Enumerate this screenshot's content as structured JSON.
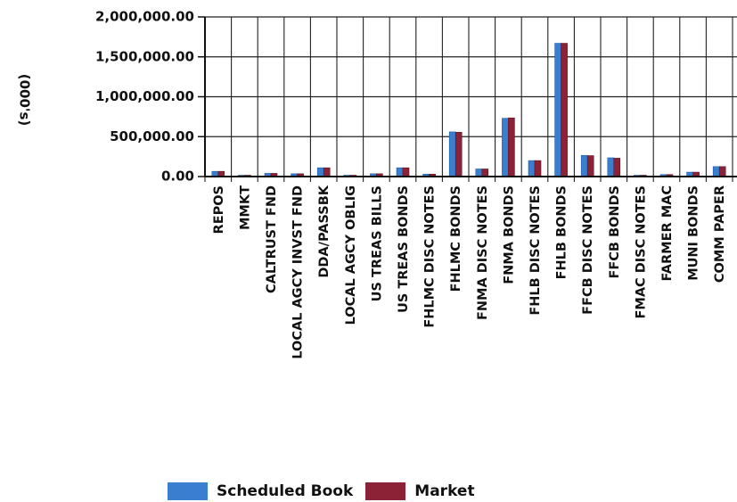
{
  "chart_data": {
    "type": "bar",
    "ylabel": "(000's)",
    "ylim": [
      0,
      2000000
    ],
    "yticks": [
      "2,000,000.00",
      "1,500,000.00",
      "1,000,000.00",
      "500,000.00",
      "0.00"
    ],
    "grid": true,
    "legend_position": "bottom",
    "categories": [
      "REPOS",
      "MMKT",
      "CALTRUST FND",
      "LOCAL AGCY INVST FND",
      "DDA/PASSBK",
      "LOCAL AGCY OBLIG",
      "US TREAS BILLS",
      "US TREAS BONDS",
      "FHLMC DISC NOTES",
      "FHLMC BONDS",
      "FNMA DISC NOTES",
      "FNMA BONDS",
      "FHLB DISC NOTES",
      "FHLB BONDS",
      "FFCB DISC NOTES",
      "FFCB BONDS",
      "FMAC DISC NOTES",
      "FARMER MAC",
      "MUNI BONDS",
      "COMM PAPER"
    ],
    "series": [
      {
        "name": "Scheduled Book",
        "color": "#3a7ecf",
        "values": [
          65000,
          10000,
          40000,
          35000,
          110000,
          5000,
          35000,
          110000,
          30000,
          560000,
          95000,
          730000,
          200000,
          1670000,
          265000,
          235000,
          10000,
          25000,
          55000,
          125000
        ]
      },
      {
        "name": "Market",
        "color": "#8b2236",
        "values": [
          65000,
          10000,
          40000,
          35000,
          110000,
          5000,
          35000,
          110000,
          30000,
          555000,
          95000,
          735000,
          200000,
          1670000,
          262000,
          230000,
          10000,
          25000,
          55000,
          125000
        ]
      }
    ]
  }
}
